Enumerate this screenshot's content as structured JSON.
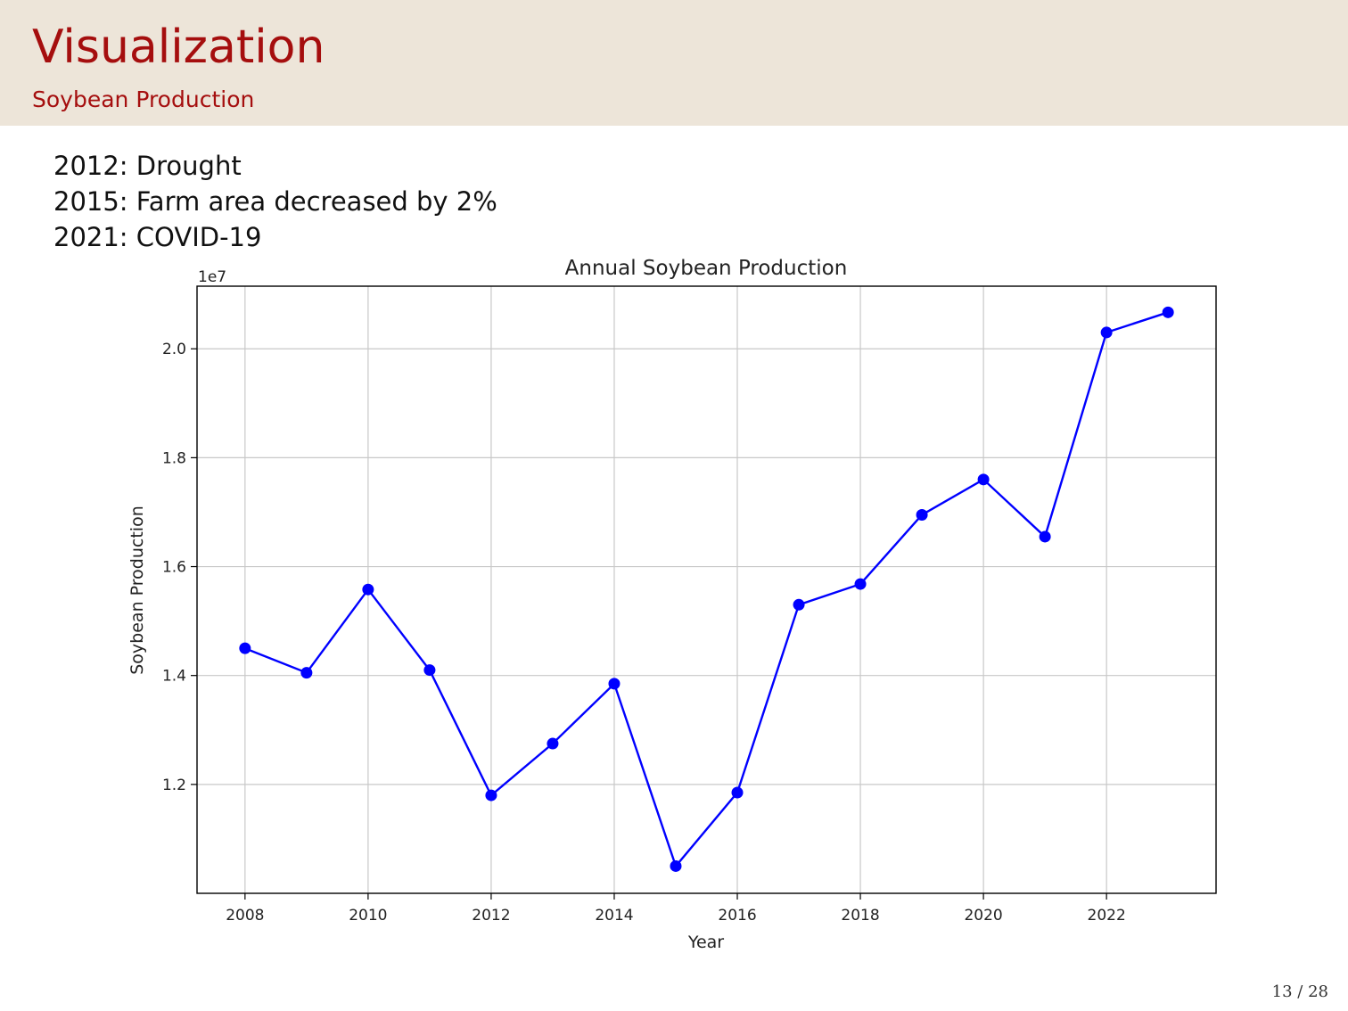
{
  "slide": {
    "title": "Visualization",
    "subtitle": "Soybean Production",
    "notes": [
      "2012: Drought",
      "2015: Farm area decreased by 2%",
      "2021: COVID-19"
    ],
    "page_number": "13 / 28"
  },
  "colors": {
    "header_background": "#ede5d9",
    "title_color": "#a50e0e",
    "series_color": "#0000ff",
    "grid_color": "#c8c8c8"
  },
  "chart_data": {
    "type": "line",
    "title": "Annual Soybean Production",
    "xlabel": "Year",
    "ylabel": "Soybean Production",
    "y_offset_label": "1e7",
    "x": [
      2008,
      2009,
      2010,
      2011,
      2012,
      2013,
      2014,
      2015,
      2016,
      2017,
      2018,
      2019,
      2020,
      2021,
      2022,
      2023
    ],
    "series": [
      {
        "values": [
          14500000,
          14050000,
          15580000,
          14100000,
          11800000,
          12750000,
          13850000,
          10500000,
          11850000,
          15300000,
          15680000,
          16950000,
          17600000,
          16550000,
          20300000,
          20670000
        ],
        "marker": "circle"
      }
    ],
    "x_ticks": [
      2008,
      2010,
      2012,
      2014,
      2016,
      2018,
      2020,
      2022
    ],
    "y_ticks": [
      1.2,
      1.4,
      1.6,
      1.8,
      2.0
    ],
    "xlim": [
      2007.22,
      2023.78
    ],
    "ylim": [
      10000000,
      21150000
    ],
    "grid": true,
    "legend": "none"
  }
}
